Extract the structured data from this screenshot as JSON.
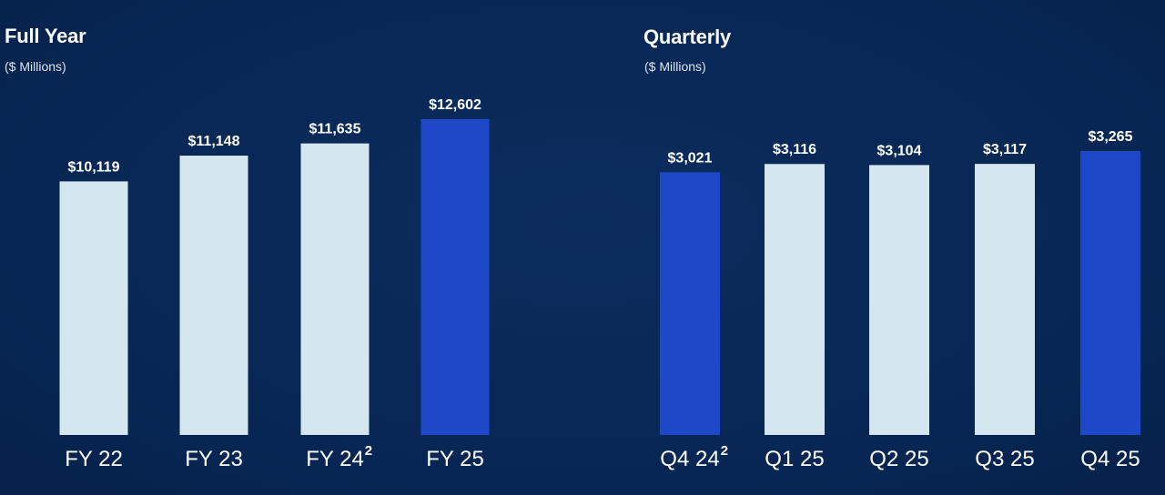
{
  "chart_data": [
    {
      "type": "bar",
      "title": "Full Year",
      "subtitle": "($ Millions)",
      "categories": [
        "FY 22",
        "FY 23",
        "FY 24",
        "FY 25"
      ],
      "category_superscripts": [
        "",
        "",
        "2",
        ""
      ],
      "values": [
        10119,
        11148,
        11635,
        12602
      ],
      "value_labels": [
        "$10,119",
        "$11,148",
        "$11,635",
        "$12,602"
      ],
      "highlight_index": [
        3
      ],
      "ylim": [
        0,
        12602
      ],
      "colors": {
        "default": "#d5e7ee",
        "highlight": "#1d49c9"
      },
      "grid": false
    },
    {
      "type": "bar",
      "title": "Quarterly",
      "subtitle": "($ Millions)",
      "categories": [
        "Q4 24",
        "Q1 25",
        "Q2 25",
        "Q3 25",
        "Q4 25"
      ],
      "category_superscripts": [
        "2",
        "",
        "",
        "",
        ""
      ],
      "values": [
        3021,
        3116,
        3104,
        3117,
        3265
      ],
      "value_labels": [
        "$3,021",
        "$3,116",
        "$3,104",
        "$3,117",
        "$3,265"
      ],
      "highlight_index": [
        0,
        4
      ],
      "ylim": [
        0,
        3265
      ],
      "colors": {
        "default": "#d5e7ee",
        "highlight": "#1d49c9"
      },
      "grid": false
    }
  ]
}
